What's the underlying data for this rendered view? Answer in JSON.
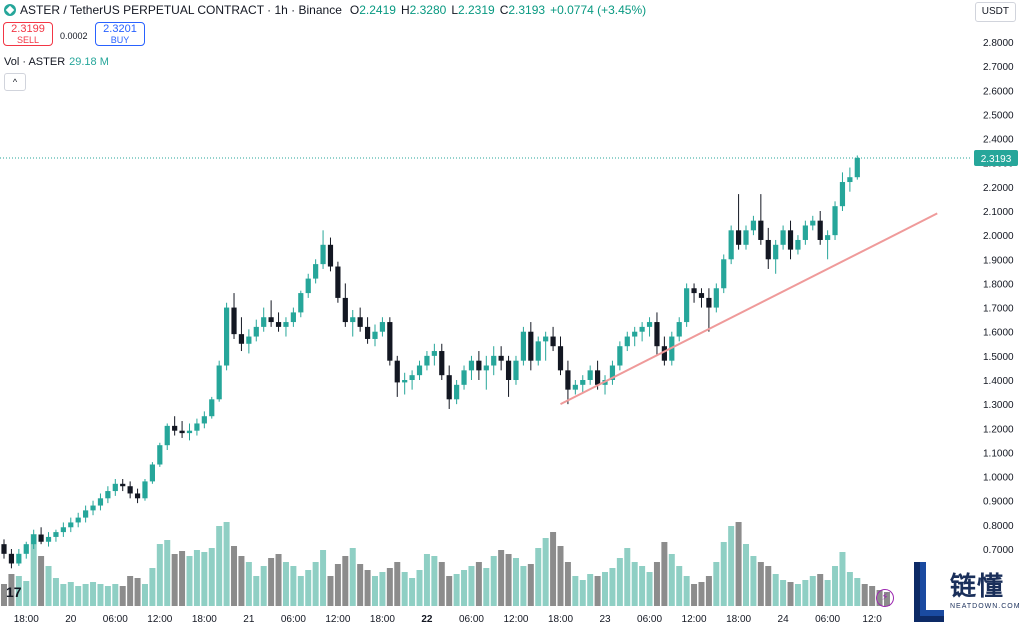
{
  "header": {
    "title": "ASTER / TetherUS PERPETUAL CONTRACT · 1h · Binance",
    "o_label": "O",
    "o_value": "2.2419",
    "h_label": "H",
    "h_value": "2.3280",
    "l_label": "L",
    "l_value": "2.2319",
    "c_label": "C",
    "c_value": "2.3193",
    "change": "+0.0774 (+3.45%)"
  },
  "trade": {
    "sell_price": "2.3199",
    "sell_label": "SELL",
    "spread": "0.0002",
    "buy_price": "2.3201",
    "buy_label": "BUY"
  },
  "volume_legend": {
    "label": "Vol · ASTER",
    "value": "29.18 M"
  },
  "currency": "USDT",
  "colors": {
    "up": "#26a69a",
    "down": "#131722",
    "volume_up": "#8fcfc4",
    "volume_down": "#8c8c8c",
    "trendline": "#ef9a9a"
  },
  "watermark": {
    "cn": "链懂",
    "en": "NEATDOWN.COM"
  },
  "tv_logo": "17",
  "icons": {
    "collapse": "chevron-up-icon",
    "bolt": "lightning-icon"
  },
  "chart_data": {
    "type": "candlestick",
    "y_axis_side": "right",
    "ylim": [
      0.62,
      2.88
    ],
    "y_ticks": [
      "2.8000",
      "2.7000",
      "2.6000",
      "2.5000",
      "2.4000",
      "2.3000",
      "2.2000",
      "2.1000",
      "2.0000",
      "1.9000",
      "1.8000",
      "1.7000",
      "1.6000",
      "1.5000",
      "1.4000",
      "1.3000",
      "1.2000",
      "1.1000",
      "1.0000",
      "0.9000",
      "0.8000",
      "0.7000"
    ],
    "y_tick_values": [
      2.8,
      2.7,
      2.6,
      2.5,
      2.4,
      2.3,
      2.2,
      2.1,
      2.0,
      1.9,
      1.8,
      1.7,
      1.6,
      1.5,
      1.4,
      1.3,
      1.2,
      1.1,
      1.0,
      0.9,
      0.8,
      0.7
    ],
    "x_ticks": [
      {
        "label": "18:00",
        "index": 3
      },
      {
        "label": "20",
        "index": 9
      },
      {
        "label": "06:00",
        "index": 15
      },
      {
        "label": "12:00",
        "index": 21
      },
      {
        "label": "18:00",
        "index": 27
      },
      {
        "label": "21",
        "index": 33
      },
      {
        "label": "06:00",
        "index": 39
      },
      {
        "label": "12:00",
        "index": 45
      },
      {
        "label": "18:00",
        "index": 51
      },
      {
        "label": "22",
        "index": 57
      },
      {
        "label": "06:00",
        "index": 63
      },
      {
        "label": "12:00",
        "index": 69
      },
      {
        "label": "18:00",
        "index": 75
      },
      {
        "label": "23",
        "index": 81
      },
      {
        "label": "06:00",
        "index": 87
      },
      {
        "label": "12:00",
        "index": 93
      },
      {
        "label": "18:00",
        "index": 99
      },
      {
        "label": "24",
        "index": 105
      },
      {
        "label": "06:00",
        "index": 111
      },
      {
        "label": "12:0",
        "index": 117
      }
    ],
    "last_price": {
      "label": "2.3193",
      "value": 2.3193
    },
    "trendline": {
      "from": {
        "index": 75,
        "value": 1.3
      },
      "to": {
        "index": 122,
        "value": 2.09
      }
    },
    "candles": [
      [
        0.72,
        0.74,
        0.66,
        0.68
      ],
      [
        0.68,
        0.7,
        0.62,
        0.64
      ],
      [
        0.64,
        0.7,
        0.63,
        0.68
      ],
      [
        0.68,
        0.73,
        0.66,
        0.72
      ],
      [
        0.72,
        0.78,
        0.7,
        0.76
      ],
      [
        0.76,
        0.79,
        0.72,
        0.73
      ],
      [
        0.73,
        0.77,
        0.71,
        0.75
      ],
      [
        0.75,
        0.78,
        0.73,
        0.77
      ],
      [
        0.77,
        0.81,
        0.75,
        0.79
      ],
      [
        0.79,
        0.83,
        0.77,
        0.81
      ],
      [
        0.81,
        0.85,
        0.79,
        0.83
      ],
      [
        0.83,
        0.88,
        0.81,
        0.86
      ],
      [
        0.86,
        0.9,
        0.84,
        0.88
      ],
      [
        0.88,
        0.93,
        0.86,
        0.91
      ],
      [
        0.91,
        0.96,
        0.89,
        0.94
      ],
      [
        0.94,
        0.99,
        0.92,
        0.97
      ],
      [
        0.97,
        0.99,
        0.94,
        0.96
      ],
      [
        0.96,
        0.98,
        0.91,
        0.93
      ],
      [
        0.93,
        0.95,
        0.89,
        0.91
      ],
      [
        0.91,
        0.99,
        0.9,
        0.98
      ],
      [
        0.98,
        1.06,
        0.97,
        1.05
      ],
      [
        1.05,
        1.14,
        1.04,
        1.13
      ],
      [
        1.13,
        1.22,
        1.11,
        1.21
      ],
      [
        1.21,
        1.25,
        1.17,
        1.19
      ],
      [
        1.19,
        1.23,
        1.16,
        1.18
      ],
      [
        1.18,
        1.22,
        1.15,
        1.19
      ],
      [
        1.19,
        1.24,
        1.17,
        1.22
      ],
      [
        1.22,
        1.27,
        1.2,
        1.25
      ],
      [
        1.25,
        1.33,
        1.24,
        1.32
      ],
      [
        1.32,
        1.48,
        1.31,
        1.46
      ],
      [
        1.46,
        1.72,
        1.44,
        1.7
      ],
      [
        1.7,
        1.76,
        1.57,
        1.59
      ],
      [
        1.59,
        1.66,
        1.52,
        1.55
      ],
      [
        1.55,
        1.61,
        1.51,
        1.58
      ],
      [
        1.58,
        1.65,
        1.56,
        1.62
      ],
      [
        1.62,
        1.7,
        1.6,
        1.66
      ],
      [
        1.66,
        1.73,
        1.62,
        1.64
      ],
      [
        1.64,
        1.68,
        1.6,
        1.62
      ],
      [
        1.62,
        1.66,
        1.58,
        1.64
      ],
      [
        1.64,
        1.7,
        1.62,
        1.68
      ],
      [
        1.68,
        1.77,
        1.66,
        1.76
      ],
      [
        1.76,
        1.84,
        1.74,
        1.82
      ],
      [
        1.82,
        1.9,
        1.8,
        1.88
      ],
      [
        1.88,
        2.02,
        1.86,
        1.96
      ],
      [
        1.96,
        1.99,
        1.85,
        1.87
      ],
      [
        1.87,
        1.89,
        1.72,
        1.74
      ],
      [
        1.74,
        1.8,
        1.62,
        1.64
      ],
      [
        1.64,
        1.69,
        1.58,
        1.66
      ],
      [
        1.66,
        1.7,
        1.6,
        1.62
      ],
      [
        1.62,
        1.66,
        1.55,
        1.57
      ],
      [
        1.57,
        1.63,
        1.54,
        1.6
      ],
      [
        1.6,
        1.66,
        1.58,
        1.64
      ],
      [
        1.64,
        1.66,
        1.46,
        1.48
      ],
      [
        1.48,
        1.5,
        1.33,
        1.39
      ],
      [
        1.39,
        1.43,
        1.34,
        1.4
      ],
      [
        1.4,
        1.44,
        1.36,
        1.42
      ],
      [
        1.42,
        1.48,
        1.4,
        1.46
      ],
      [
        1.46,
        1.52,
        1.44,
        1.5
      ],
      [
        1.5,
        1.55,
        1.46,
        1.52
      ],
      [
        1.52,
        1.55,
        1.4,
        1.42
      ],
      [
        1.42,
        1.46,
        1.28,
        1.32
      ],
      [
        1.32,
        1.4,
        1.3,
        1.38
      ],
      [
        1.38,
        1.46,
        1.36,
        1.44
      ],
      [
        1.44,
        1.5,
        1.4,
        1.48
      ],
      [
        1.48,
        1.52,
        1.4,
        1.44
      ],
      [
        1.44,
        1.5,
        1.36,
        1.46
      ],
      [
        1.46,
        1.54,
        1.42,
        1.5
      ],
      [
        1.5,
        1.54,
        1.44,
        1.48
      ],
      [
        1.48,
        1.5,
        1.33,
        1.4
      ],
      [
        1.4,
        1.5,
        1.38,
        1.48
      ],
      [
        1.48,
        1.62,
        1.46,
        1.6
      ],
      [
        1.6,
        1.64,
        1.44,
        1.48
      ],
      [
        1.48,
        1.58,
        1.46,
        1.56
      ],
      [
        1.56,
        1.6,
        1.48,
        1.58
      ],
      [
        1.58,
        1.62,
        1.52,
        1.54
      ],
      [
        1.54,
        1.58,
        1.42,
        1.44
      ],
      [
        1.44,
        1.48,
        1.3,
        1.36
      ],
      [
        1.36,
        1.4,
        1.34,
        1.38
      ],
      [
        1.38,
        1.42,
        1.35,
        1.4
      ],
      [
        1.4,
        1.46,
        1.38,
        1.44
      ],
      [
        1.44,
        1.48,
        1.36,
        1.38
      ],
      [
        1.38,
        1.42,
        1.34,
        1.4
      ],
      [
        1.4,
        1.48,
        1.38,
        1.46
      ],
      [
        1.46,
        1.56,
        1.44,
        1.54
      ],
      [
        1.54,
        1.6,
        1.52,
        1.58
      ],
      [
        1.58,
        1.62,
        1.54,
        1.6
      ],
      [
        1.6,
        1.64,
        1.56,
        1.62
      ],
      [
        1.62,
        1.66,
        1.58,
        1.64
      ],
      [
        1.64,
        1.68,
        1.5,
        1.54
      ],
      [
        1.54,
        1.58,
        1.46,
        1.48
      ],
      [
        1.48,
        1.6,
        1.46,
        1.58
      ],
      [
        1.58,
        1.66,
        1.56,
        1.64
      ],
      [
        1.64,
        1.8,
        1.62,
        1.78
      ],
      [
        1.78,
        1.8,
        1.72,
        1.76
      ],
      [
        1.76,
        1.78,
        1.7,
        1.74
      ],
      [
        1.74,
        1.78,
        1.6,
        1.7
      ],
      [
        1.7,
        1.8,
        1.68,
        1.78
      ],
      [
        1.78,
        1.92,
        1.76,
        1.9
      ],
      [
        1.9,
        2.04,
        1.88,
        2.02
      ],
      [
        2.02,
        2.17,
        1.94,
        1.96
      ],
      [
        1.96,
        2.04,
        1.94,
        2.02
      ],
      [
        2.02,
        2.08,
        2.0,
        2.06
      ],
      [
        2.06,
        2.17,
        1.96,
        1.98
      ],
      [
        1.98,
        2.03,
        1.86,
        1.9
      ],
      [
        1.9,
        1.98,
        1.84,
        1.96
      ],
      [
        1.96,
        2.04,
        1.94,
        2.02
      ],
      [
        2.02,
        2.06,
        1.9,
        1.94
      ],
      [
        1.94,
        2.0,
        1.92,
        1.98
      ],
      [
        1.98,
        2.06,
        1.96,
        2.04
      ],
      [
        2.04,
        2.08,
        2.02,
        2.06
      ],
      [
        2.06,
        2.1,
        1.96,
        1.98
      ],
      [
        1.98,
        2.02,
        1.9,
        2.0
      ],
      [
        2.0,
        2.14,
        1.98,
        2.12
      ],
      [
        2.12,
        2.26,
        2.1,
        2.22
      ],
      [
        2.22,
        2.28,
        2.18,
        2.24
      ],
      [
        2.24,
        2.33,
        2.23,
        2.32
      ]
    ],
    "volume_ylim": [
      0,
      160
    ],
    "volumes": [
      22,
      32,
      30,
      25,
      72,
      50,
      40,
      28,
      22,
      24,
      20,
      22,
      24,
      22,
      20,
      22,
      20,
      30,
      28,
      22,
      38,
      62,
      66,
      52,
      55,
      50,
      56,
      54,
      58,
      80,
      84,
      60,
      50,
      44,
      30,
      40,
      48,
      52,
      44,
      40,
      30,
      36,
      44,
      56,
      30,
      42,
      50,
      58,
      42,
      36,
      30,
      34,
      38,
      44,
      34,
      28,
      36,
      52,
      50,
      44,
      30,
      32,
      36,
      40,
      44,
      38,
      50,
      56,
      52,
      48,
      40,
      42,
      58,
      68,
      74,
      60,
      44,
      30,
      26,
      32,
      30,
      34,
      38,
      48,
      58,
      44,
      40,
      34,
      44,
      64,
      52,
      40,
      30,
      22,
      24,
      30,
      44,
      64,
      80,
      84,
      62,
      50,
      44,
      40,
      32,
      26,
      24,
      22,
      26,
      30,
      32,
      26,
      40,
      54,
      34,
      28,
      22,
      20,
      16,
      14
    ]
  }
}
